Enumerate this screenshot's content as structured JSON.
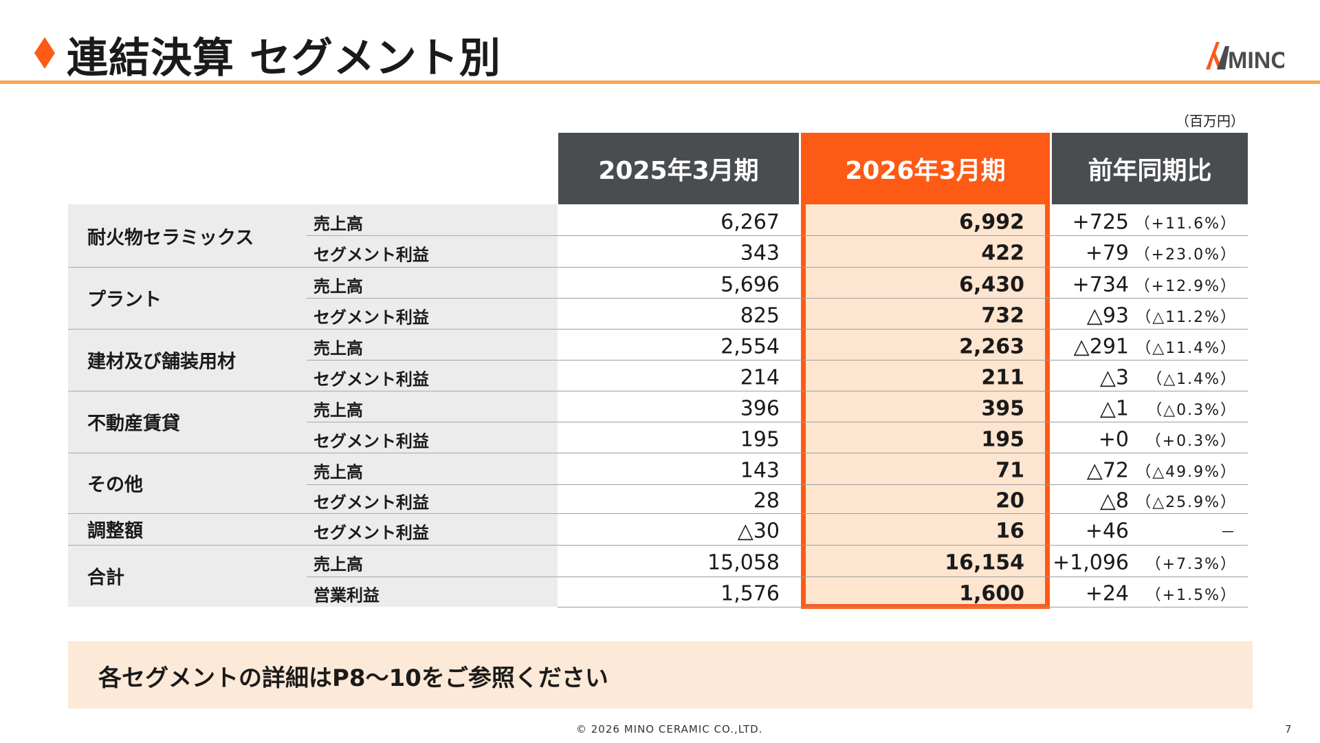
{
  "header": {
    "title": "連結決算 セグメント別",
    "logo_text": "MINO"
  },
  "unit": "（百万円）",
  "columns": {
    "prev": "2025年3月期",
    "curr": "2026年3月期",
    "yoy": "前年同期比"
  },
  "segments": [
    {
      "name": "耐火物セラミックス",
      "rows": [
        {
          "metric": "売上高",
          "prev": "6,267",
          "curr": "6,992",
          "diff": "+725",
          "pct": "（+11.6%）"
        },
        {
          "metric": "セグメント利益",
          "prev": "343",
          "curr": "422",
          "diff": "+79",
          "pct": "（+23.0%）"
        }
      ]
    },
    {
      "name": "プラント",
      "rows": [
        {
          "metric": "売上高",
          "prev": "5,696",
          "curr": "6,430",
          "diff": "+734",
          "pct": "（+12.9%）"
        },
        {
          "metric": "セグメント利益",
          "prev": "825",
          "curr": "732",
          "diff": "△93",
          "pct": "（△11.2%）"
        }
      ]
    },
    {
      "name": "建材及び舗装用材",
      "rows": [
        {
          "metric": "売上高",
          "prev": "2,554",
          "curr": "2,263",
          "diff": "△291",
          "pct": "（△11.4%）"
        },
        {
          "metric": "セグメント利益",
          "prev": "214",
          "curr": "211",
          "diff": "△3",
          "pct": "（△1.4%）"
        }
      ]
    },
    {
      "name": "不動産賃貸",
      "rows": [
        {
          "metric": "売上高",
          "prev": "396",
          "curr": "395",
          "diff": "△1",
          "pct": "（△0.3%）"
        },
        {
          "metric": "セグメント利益",
          "prev": "195",
          "curr": "195",
          "diff": "+0",
          "pct": "（+0.3%）"
        }
      ]
    },
    {
      "name": "その他",
      "rows": [
        {
          "metric": "売上高",
          "prev": "143",
          "curr": "71",
          "diff": "△72",
          "pct": "（△49.9%）"
        },
        {
          "metric": "セグメント利益",
          "prev": "28",
          "curr": "20",
          "diff": "△8",
          "pct": "（△25.9%）"
        }
      ]
    },
    {
      "name": "調整額",
      "rows": [
        {
          "metric": "セグメント利益",
          "prev": "△30",
          "curr": "16",
          "diff": "+46",
          "pct": "－"
        }
      ]
    },
    {
      "name": "合計",
      "rows": [
        {
          "metric": "売上高",
          "prev": "15,058",
          "curr": "16,154",
          "diff": "+1,096",
          "pct": "（+7.3%）"
        },
        {
          "metric": "営業利益",
          "prev": "1,576",
          "curr": "1,600",
          "diff": "+24",
          "pct": "（+1.5%）"
        }
      ]
    }
  ],
  "note": "各セグメントの詳細はP8～10をご参照ください",
  "footer": {
    "copyright": "© 2026 MINO CERAMIC CO.,LTD.",
    "page": "7"
  },
  "colors": {
    "accent": "#fd5a16",
    "header_dark": "#4a4d50",
    "highlight_bg": "#fde5cf",
    "rule": "#f6a64a"
  }
}
